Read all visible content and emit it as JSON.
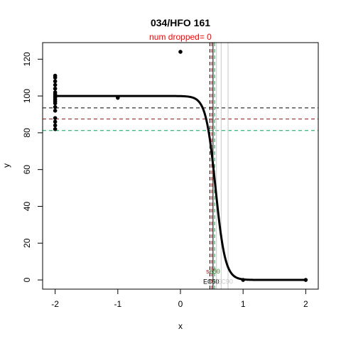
{
  "chart_data": {
    "type": "scatter",
    "title": "034/HFO 161",
    "subtitle": "num dropped= 0",
    "xlabel": "x",
    "ylabel": "y",
    "xlim": [
      -2.2,
      2.2
    ],
    "ylim": [
      -5,
      129
    ],
    "x_ticks": [
      -2,
      -1,
      0,
      1,
      2
    ],
    "y_ticks": [
      0,
      20,
      40,
      60,
      80,
      100,
      120
    ],
    "grid": false,
    "points": [
      {
        "x": -2,
        "y": 111
      },
      {
        "x": -2,
        "y": 110
      },
      {
        "x": -2,
        "y": 108
      },
      {
        "x": -2,
        "y": 106
      },
      {
        "x": -2,
        "y": 104
      },
      {
        "x": -2,
        "y": 102
      },
      {
        "x": -2,
        "y": 101
      },
      {
        "x": -2,
        "y": 100
      },
      {
        "x": -2,
        "y": 99
      },
      {
        "x": -2,
        "y": 98
      },
      {
        "x": -2,
        "y": 97
      },
      {
        "x": -2,
        "y": 96
      },
      {
        "x": -2,
        "y": 94
      },
      {
        "x": -2,
        "y": 92
      },
      {
        "x": -2,
        "y": 88
      },
      {
        "x": -2,
        "y": 86
      },
      {
        "x": -2,
        "y": 84
      },
      {
        "x": -2,
        "y": 82
      },
      {
        "x": -1,
        "y": 99
      },
      {
        "x": 0,
        "y": 124
      },
      {
        "x": 1,
        "y": 0
      },
      {
        "x": 2,
        "y": 0
      }
    ],
    "fit_curve": {
      "top": 100,
      "bottom": 0,
      "ec50": 0.56,
      "slope": 13,
      "x_from": -2,
      "x_to": 2
    },
    "horizontal_lines": [
      {
        "y": 93.5,
        "color": "#000000",
        "dash": true
      },
      {
        "y": 87.5,
        "color": "#8b1a1a",
        "dash": true
      },
      {
        "y": 81.2,
        "color": "#00a550",
        "dash": true
      }
    ],
    "vertical_lines": [
      {
        "x": 0.47,
        "color": "#000000",
        "dash": true
      },
      {
        "x": 0.5,
        "color": "#cc0000",
        "dash": true
      },
      {
        "x": 0.52,
        "color": "#000000",
        "dash": false
      },
      {
        "x": 0.545,
        "color": "#00a550",
        "dash": true
      },
      {
        "x": 0.575,
        "color": "#c8c8c8",
        "dash": false
      },
      {
        "x": 0.65,
        "color": "#c8c8c8",
        "dash": false
      },
      {
        "x": 0.76,
        "color": "#c8c8c8",
        "dash": false
      }
    ],
    "annotations": [
      {
        "text": "se50",
        "x": 0.52,
        "y": 5,
        "color": "#8b1a1a"
      },
      {
        "text": "sd3",
        "x": 0.55,
        "y": 5,
        "color": "#4fc870"
      },
      {
        "text": "EC50",
        "x": 0.49,
        "y": -0.5,
        "color": "#000000"
      },
      {
        "text": "EC90",
        "x": 0.71,
        "y": -0.5,
        "color": "#c8c8c8"
      }
    ],
    "colors": {
      "points": "#000000",
      "curve": "#000000",
      "subtitle": "#ff0000",
      "axis": "#000000"
    }
  }
}
